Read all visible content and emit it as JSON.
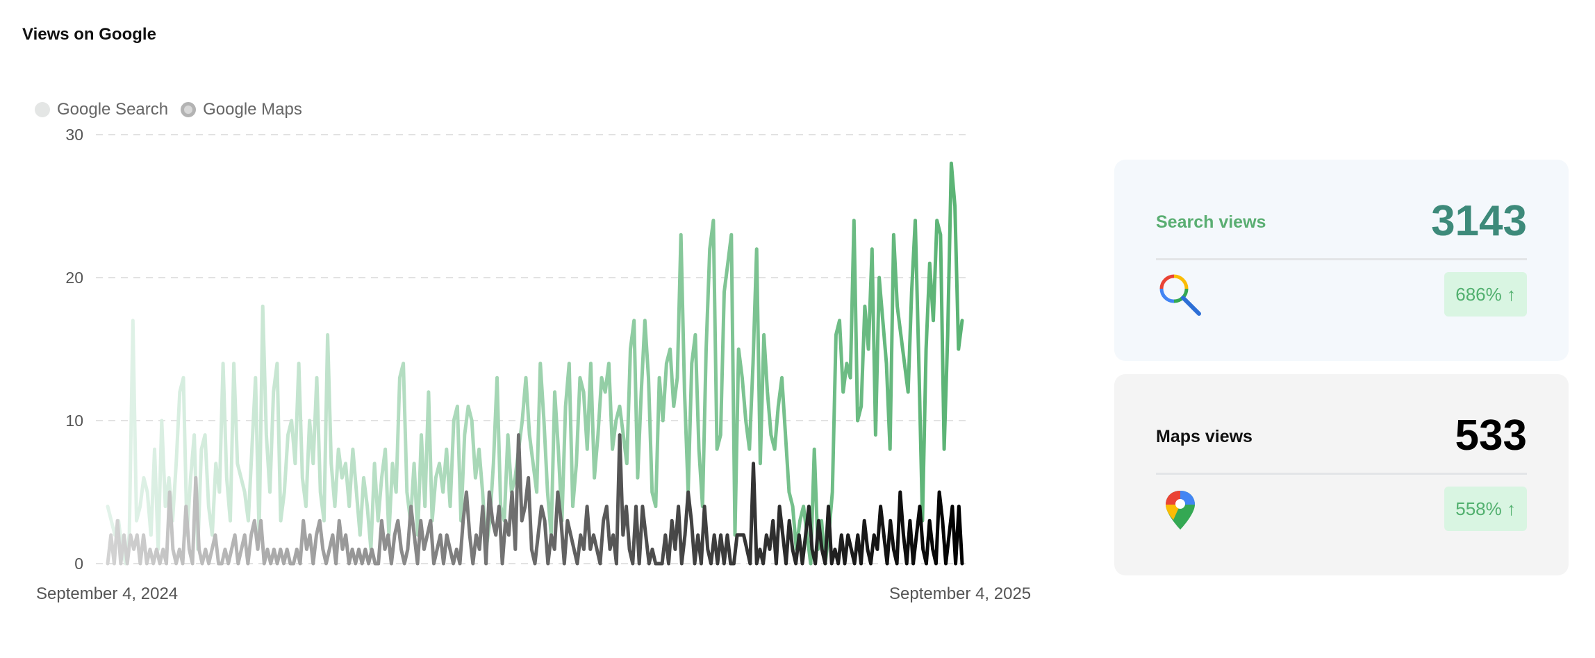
{
  "page": {
    "title": "Views on Google"
  },
  "legend": {
    "items": [
      {
        "label": "Google Search",
        "color": "#e4e6e5"
      },
      {
        "label": "Google Maps",
        "color": "#b3b3b3"
      }
    ]
  },
  "chart_data": {
    "type": "line",
    "title": "Views on Google",
    "xlabel": "",
    "ylabel": "",
    "x_start": "September 4, 2024",
    "x_end": "September 4, 2025",
    "x_tick_labels": [
      "September 4, 2024",
      "September 4, 2025"
    ],
    "ylim": [
      0,
      30
    ],
    "y_ticks": [
      0,
      10,
      20,
      30
    ],
    "grid": true,
    "legend_position": "top-left",
    "series": [
      {
        "name": "Google Search",
        "color_start": "#e3f3ea",
        "color_end": "#5ab374",
        "values": [
          4,
          3,
          2,
          3,
          1,
          0,
          2,
          17,
          3,
          4,
          6,
          5,
          2,
          8,
          1,
          10,
          4,
          6,
          3,
          7,
          12,
          13,
          2,
          6,
          9,
          1,
          8,
          9,
          4,
          2,
          7,
          5,
          14,
          6,
          3,
          14,
          7,
          6,
          5,
          3,
          8,
          13,
          2,
          18,
          9,
          5,
          12,
          14,
          3,
          5,
          9,
          10,
          7,
          14,
          6,
          4,
          10,
          7,
          13,
          5,
          3,
          16,
          7,
          4,
          8,
          6,
          7,
          4,
          8,
          5,
          2,
          6,
          4,
          1,
          7,
          3,
          6,
          8,
          2,
          7,
          5,
          13,
          14,
          5,
          3,
          7,
          2,
          9,
          4,
          12,
          3,
          6,
          7,
          5,
          8,
          4,
          10,
          11,
          3,
          9,
          11,
          10,
          6,
          8,
          5,
          1,
          3,
          7,
          13,
          4,
          3,
          9,
          5,
          6,
          8,
          10,
          13,
          9,
          7,
          5,
          14,
          10,
          5,
          2,
          12,
          8,
          3,
          11,
          14,
          4,
          7,
          13,
          12,
          8,
          14,
          6,
          9,
          13,
          12,
          14,
          8,
          10,
          11,
          9,
          7,
          15,
          17,
          6,
          12,
          17,
          13,
          5,
          4,
          13,
          10,
          14,
          15,
          11,
          13,
          23,
          12,
          5,
          14,
          16,
          8,
          4,
          15,
          22,
          24,
          8,
          9,
          19,
          21,
          23,
          2,
          15,
          13,
          10,
          8,
          14,
          22,
          7,
          16,
          12,
          9,
          8,
          11,
          13,
          9,
          5,
          4,
          1,
          3,
          4,
          2,
          0,
          8,
          1,
          3,
          0,
          2,
          5,
          16,
          17,
          12,
          14,
          13,
          24,
          10,
          11,
          18,
          15,
          22,
          9,
          20,
          17,
          14,
          8,
          23,
          18,
          16,
          14,
          12,
          19,
          24,
          14,
          3,
          15,
          21,
          17,
          24,
          23,
          8,
          16,
          28,
          25,
          15,
          17
        ]
      },
      {
        "name": "Google Maps",
        "color_start": "#d4d4d4",
        "color_end": "#000000",
        "values": [
          0,
          2,
          0,
          3,
          0,
          2,
          0,
          2,
          1,
          2,
          0,
          2,
          0,
          1,
          0,
          1,
          0,
          1,
          0,
          5,
          1,
          0,
          1,
          0,
          4,
          1,
          0,
          6,
          1,
          0,
          1,
          0,
          1,
          2,
          0,
          0,
          1,
          0,
          1,
          2,
          0,
          1,
          2,
          0,
          2,
          3,
          1,
          3,
          0,
          1,
          0,
          1,
          0,
          1,
          0,
          1,
          0,
          0,
          1,
          0,
          3,
          1,
          2,
          0,
          2,
          3,
          1,
          0,
          1,
          2,
          0,
          3,
          1,
          2,
          0,
          1,
          0,
          1,
          0,
          1,
          0,
          1,
          0,
          0,
          3,
          1,
          2,
          0,
          2,
          3,
          1,
          0,
          1,
          4,
          2,
          0,
          3,
          1,
          2,
          3,
          0,
          1,
          2,
          0,
          2,
          1,
          0,
          1,
          0,
          3,
          5,
          2,
          0,
          2,
          1,
          4,
          0,
          5,
          3,
          2,
          4,
          0,
          3,
          2,
          5,
          1,
          9,
          3,
          4,
          6,
          1,
          0,
          2,
          4,
          3,
          0,
          2,
          1,
          5,
          3,
          0,
          3,
          2,
          1,
          0,
          2,
          1,
          4,
          1,
          2,
          1,
          0,
          3,
          4,
          1,
          2,
          0,
          9,
          2,
          4,
          1,
          0,
          4,
          0,
          4,
          2,
          0,
          1,
          0,
          0,
          0,
          2,
          0,
          3,
          1,
          4,
          0,
          2,
          5,
          3,
          0,
          2,
          0,
          4,
          1,
          0,
          2,
          0,
          2,
          0,
          2,
          0,
          0,
          2,
          2,
          2,
          1,
          0,
          7,
          0,
          1,
          0,
          2,
          1,
          3,
          0,
          4,
          2,
          0,
          3,
          1,
          0,
          2,
          0,
          2,
          4,
          1,
          0,
          3,
          1,
          0,
          4,
          0,
          1,
          0,
          2,
          0,
          2,
          1,
          0,
          2,
          0,
          3,
          1,
          0,
          2,
          1,
          4,
          2,
          0,
          3,
          1,
          0,
          5,
          2,
          0,
          3,
          0,
          2,
          4,
          1,
          0,
          3,
          1,
          0,
          5,
          3,
          0,
          2,
          4,
          0,
          4,
          0
        ]
      }
    ]
  },
  "cards": {
    "search": {
      "label": "Search views",
      "value": "3143",
      "change": "686% ↑",
      "icon": "magnifier-icon",
      "accent": "#3d8a7a"
    },
    "maps": {
      "label": "Maps views",
      "value": "533",
      "change": "558% ↑",
      "icon": "map-pin-icon",
      "accent": "#000000"
    }
  }
}
